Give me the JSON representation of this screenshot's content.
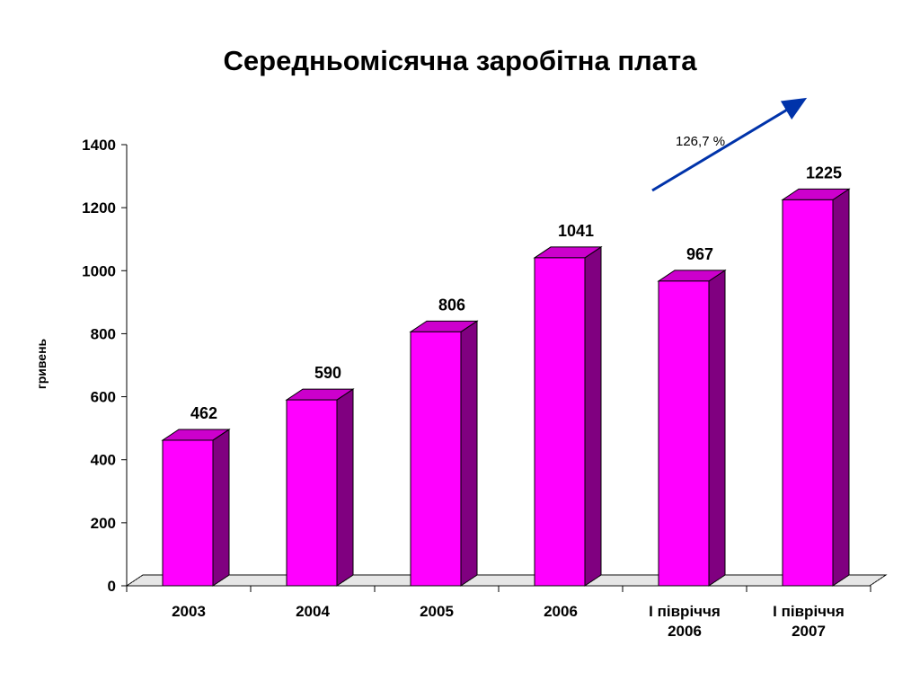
{
  "chart_data": {
    "type": "bar",
    "title": "Середньомісячна заробітна плата",
    "ylabel": "гривень",
    "xlabel": "",
    "categories": [
      [
        "2003"
      ],
      [
        "2004"
      ],
      [
        "2005"
      ],
      [
        "2006"
      ],
      [
        "I півріччя",
        "2006"
      ],
      [
        "I півріччя",
        "2007"
      ]
    ],
    "values": [
      462,
      590,
      806,
      1041,
      967,
      1225
    ],
    "data_labels": [
      "462",
      "590",
      "806",
      "1041",
      "967",
      "1225"
    ],
    "ylim": [
      0,
      1400
    ],
    "yticks": [
      0,
      200,
      400,
      600,
      800,
      1000,
      1200,
      1400
    ],
    "grid": false,
    "legend": "none",
    "style": "3d-column",
    "colors": {
      "front": "#ff00ff",
      "side": "#800080",
      "top": "#cc00cc",
      "arrow": "#0033aa"
    },
    "annotation": {
      "text": "126,7 %",
      "type": "arrow-up"
    }
  }
}
